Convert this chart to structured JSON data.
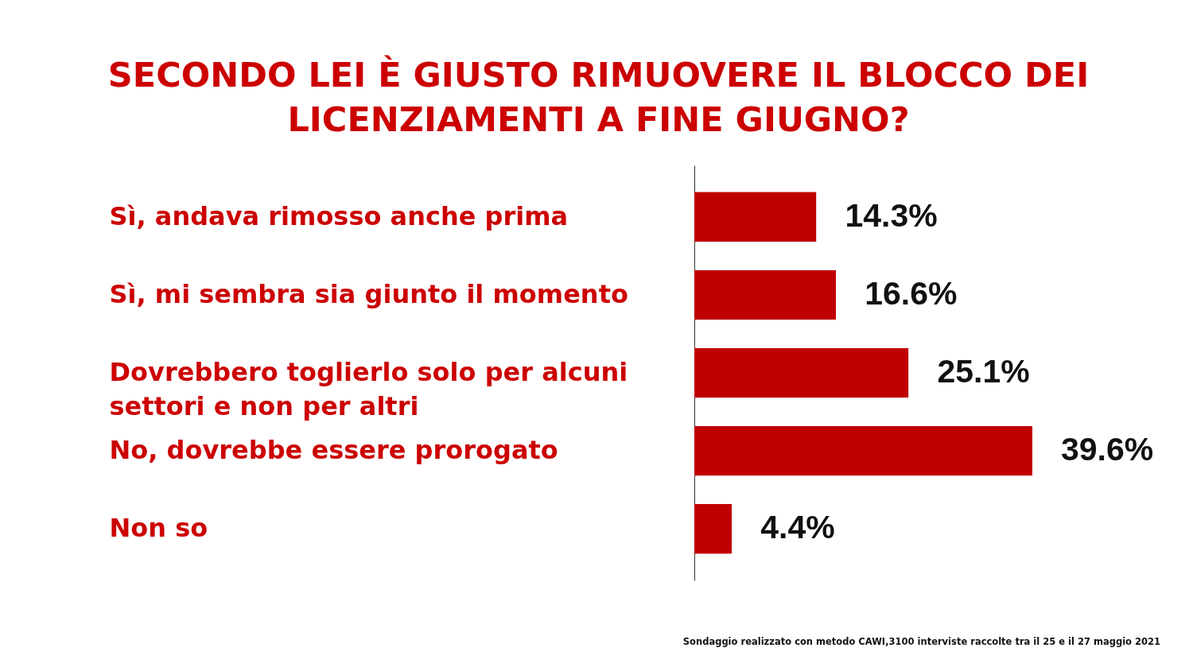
{
  "chart_data": {
    "type": "bar",
    "orientation": "horizontal",
    "title": "SECONDO LEI È GIUSTO RIMUOVERE IL BLOCCO DEI\nLICENZIAMENTI A FINE GIUGNO?",
    "categories": [
      "Sì, andava rimosso anche prima",
      "Sì, mi sembra sia giunto il momento",
      "Dovrebbero toglierlo solo per alcuni\nsettori e non per altri",
      "No, dovrebbe essere prorogato",
      "Non so"
    ],
    "values": [
      14.3,
      16.6,
      25.1,
      39.6,
      4.4
    ],
    "color": "#c00000",
    "value_labels": [
      "14.3%",
      "16.6%",
      "25.1%",
      "39.6%",
      "4.4%"
    ],
    "tick_labels": "y",
    "annotations": [
      "Sondaggio realizzato con metodo CAWI,3100 interviste raccolte tra il 25  e il 27 maggio 2021"
    ]
  }
}
